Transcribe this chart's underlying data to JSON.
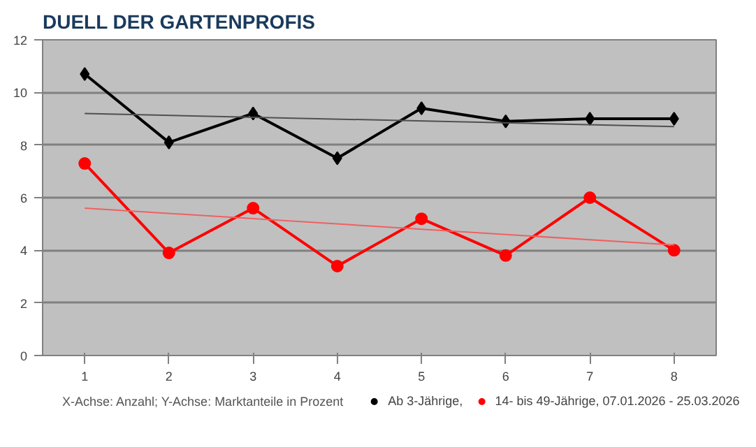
{
  "chart_data": {
    "type": "line",
    "title": "DUELL DER GARTENPROFIS",
    "categories": [
      "1",
      "2",
      "3",
      "4",
      "5",
      "6",
      "7",
      "8"
    ],
    "series": [
      {
        "name": "Ab 3-Jährige,",
        "color": "#000000",
        "marker": "diamond",
        "values": [
          10.7,
          8.1,
          9.2,
          7.5,
          9.4,
          8.9,
          9.0,
          9.0
        ]
      },
      {
        "name": "14- bis 49-Jährige, 07.01.2026 - 25.03.2026",
        "color": "#ff0000",
        "marker": "circle",
        "values": [
          7.3,
          3.9,
          5.6,
          3.4,
          5.2,
          3.8,
          6.0,
          4.0
        ]
      },
      {
        "color": "#505050",
        "marker": "none",
        "x": [
          "1",
          "8"
        ],
        "values": [
          9.2,
          8.7
        ]
      },
      {
        "color": "#f06060",
        "marker": "none",
        "x": [
          "1",
          "8"
        ],
        "values": [
          5.6,
          4.2
        ]
      }
    ],
    "ylim": [
      0,
      12
    ],
    "yticks": [
      0,
      2,
      4,
      6,
      8,
      10,
      12
    ],
    "grid": "y",
    "legend": "bottom right",
    "annotations": [
      "X-Achse: Anzahl; Y-Achse: Marktanteile in Prozent"
    ]
  }
}
